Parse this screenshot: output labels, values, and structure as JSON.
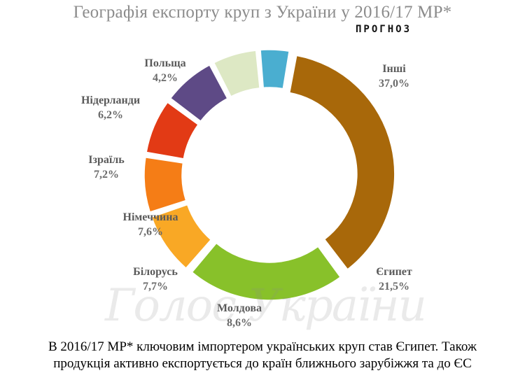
{
  "title": "Географія експорту круп з України у 2016/17 МР*",
  "subtitle": "ПРОГНОЗ",
  "chart_data": {
    "type": "pie",
    "title": "Географія експорту круп з України у 2016/17 МР*",
    "subtitle": "ПРОГНОЗ",
    "style": "exploded donut",
    "slices": [
      {
        "label": "Інші",
        "value": 37.0,
        "value_label": "37,0%",
        "color": "#a8680a"
      },
      {
        "label": "Єгипет",
        "value": 21.5,
        "value_label": "21,5%",
        "color": "#88c12a"
      },
      {
        "label": "Молдова",
        "value": 8.6,
        "value_label": "8,6%",
        "color": "#f9a825"
      },
      {
        "label": "Білорусь",
        "value": 7.7,
        "value_label": "7,7%",
        "color": "#f57d16"
      },
      {
        "label": "Німеччина",
        "value": 7.6,
        "value_label": "7,6%",
        "color": "#e23a15"
      },
      {
        "label": "Ізраїль",
        "value": 7.2,
        "value_label": "7,2%",
        "color": "#5e4a86"
      },
      {
        "label": "Нідерланди",
        "value": 6.2,
        "value_label": "6,2%",
        "color": "#dde8c4"
      },
      {
        "label": "Польща",
        "value": 4.2,
        "value_label": "4,2%",
        "color": "#4aaed0"
      }
    ]
  },
  "watermark": "Голос України",
  "caption": {
    "line1": "В 2016/17 МР* ключовим імпортером українських круп став Єгипет. Також",
    "line2": "продукція активно експортується до країн ближнього зарубіжжя та до ЄС"
  }
}
